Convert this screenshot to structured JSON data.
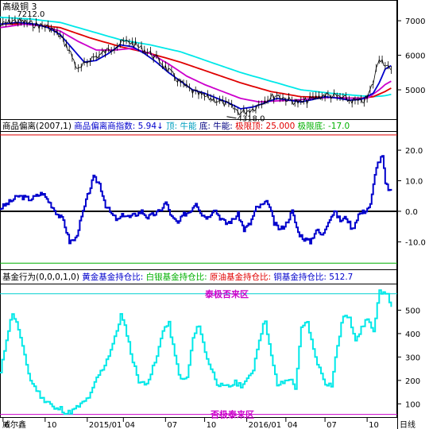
{
  "chart_data": [
    {
      "type": "line",
      "title": "高级铜 3",
      "y_ticks": [
        5000,
        6000,
        7000
      ],
      "ylim": [
        4150,
        7600
      ],
      "x_ticks": [
        {
          "label": "6",
          "week": 1
        },
        {
          "label": "10",
          "week": 15
        },
        {
          "label": "2015/01",
          "week": 29
        },
        {
          "label": "04",
          "week": 41
        },
        {
          "label": "07",
          "week": 55
        },
        {
          "label": "10",
          "week": 68
        },
        {
          "label": "2016/01",
          "week": 82
        },
        {
          "label": "04",
          "week": 95
        },
        {
          "label": "07",
          "week": 108
        },
        {
          "label": "10",
          "week": 122
        }
      ],
      "x_range_weeks": [
        0,
        132
      ],
      "annotations": {
        "high_label": "7212.0",
        "high_week": 3,
        "high_value": 7212,
        "low_label": "4318.0",
        "low_week": 78,
        "low_value": 4318
      },
      "series": [
        {
          "key": "price",
          "color": "#000000",
          "x": [
            0,
            4,
            8,
            12,
            16,
            18,
            20,
            23,
            26,
            30,
            33,
            36,
            40,
            43,
            46,
            50,
            53,
            56,
            60,
            64,
            68,
            72,
            76,
            80,
            84,
            88,
            92,
            96,
            100,
            104,
            108,
            112,
            116,
            120,
            122,
            124,
            126,
            128,
            130
          ],
          "values": [
            6850,
            7000,
            6960,
            6880,
            6820,
            6700,
            6550,
            6150,
            5550,
            5900,
            6000,
            6150,
            6350,
            6400,
            6250,
            6050,
            5850,
            5550,
            5200,
            4950,
            4800,
            4700,
            4550,
            4330,
            4450,
            4700,
            4850,
            4700,
            4620,
            4750,
            4850,
            4800,
            4700,
            4650,
            4750,
            5200,
            5950,
            5750,
            5500
          ]
        },
        {
          "key": "ma_blue",
          "color": "#0000cc",
          "x": [
            0,
            6,
            12,
            16,
            20,
            24,
            28,
            32,
            36,
            40,
            44,
            48,
            52,
            56,
            60,
            64,
            68,
            72,
            76,
            80,
            84,
            88,
            92,
            96,
            100,
            104,
            108,
            112,
            116,
            120,
            124,
            126,
            128,
            130
          ],
          "values": [
            6900,
            6950,
            6900,
            6800,
            6600,
            6200,
            5800,
            5850,
            6050,
            6300,
            6250,
            6050,
            5800,
            5500,
            5250,
            5000,
            4900,
            4760,
            4620,
            4450,
            4500,
            4620,
            4750,
            4700,
            4650,
            4720,
            4800,
            4760,
            4700,
            4720,
            4900,
            5200,
            5600,
            5700
          ]
        },
        {
          "key": "ma_magenta",
          "color": "#cc00cc",
          "x": [
            0,
            8,
            14,
            20,
            26,
            32,
            38,
            44,
            50,
            56,
            62,
            68,
            74,
            80,
            86,
            92,
            98,
            104,
            110,
            116,
            122,
            126,
            128,
            130
          ],
          "values": [
            6800,
            6900,
            6850,
            6700,
            6400,
            6150,
            6150,
            6200,
            6050,
            5750,
            5400,
            5150,
            4950,
            4750,
            4650,
            4680,
            4700,
            4750,
            4780,
            4760,
            4750,
            5000,
            5150,
            5250
          ]
        },
        {
          "key": "ma_red",
          "color": "#e00000",
          "x": [
            0,
            10,
            20,
            30,
            40,
            50,
            60,
            70,
            80,
            90,
            100,
            110,
            116,
            120,
            124,
            128,
            130
          ],
          "values": [
            6900,
            6900,
            6800,
            6500,
            6250,
            6050,
            5800,
            5500,
            5200,
            4950,
            4800,
            4780,
            4760,
            4760,
            4800,
            4950,
            5050
          ]
        },
        {
          "key": "ma_cyan",
          "color": "#00e8e8",
          "x": [
            0,
            10,
            20,
            30,
            40,
            50,
            60,
            70,
            80,
            90,
            100,
            110,
            118,
            124,
            128,
            130
          ],
          "values": [
            7100,
            7050,
            6950,
            6700,
            6450,
            6300,
            6100,
            5800,
            5500,
            5250,
            5000,
            4900,
            4840,
            4800,
            4830,
            4870
          ]
        }
      ]
    },
    {
      "type": "line",
      "title": "商品偏离(2007,1)",
      "legend": [
        {
          "text": "商品偏离商指数: 5.94↓",
          "color": "#0000cc"
        },
        {
          "text": "顶: 牛能",
          "color": "#00a0c0"
        },
        {
          "text": "底: 牛能:",
          "color": "#000080"
        },
        {
          "text": "极限顶: 25.000",
          "color": "#e00000"
        },
        {
          "text": "极限底: -17.0",
          "color": "#00b000"
        }
      ],
      "y_ticks": [
        -10.0,
        0.0,
        10.0,
        20.0
      ],
      "ylim": [
        -19,
        26
      ],
      "zero_line": 0,
      "limit_top": 25,
      "limit_bottom": -17,
      "x": [
        0,
        3,
        6,
        10,
        14,
        17,
        19,
        21,
        23,
        25,
        27,
        29,
        31,
        33,
        35,
        37,
        39,
        41,
        43,
        45,
        47,
        49,
        51,
        53,
        55,
        57,
        59,
        61,
        63,
        65,
        67,
        69,
        71,
        73,
        75,
        77,
        79,
        81,
        83,
        85,
        87,
        89,
        91,
        93,
        95,
        97,
        99,
        101,
        103,
        105,
        107,
        109,
        111,
        113,
        115,
        117,
        119,
        121,
        123,
        125,
        127,
        128,
        130
      ],
      "values": [
        1,
        3,
        5,
        4,
        6,
        2,
        -1,
        -3,
        -10,
        -9,
        -2,
        5,
        11,
        9,
        2,
        -1,
        -3,
        -1,
        -2,
        -1,
        0,
        -2,
        -1,
        0,
        3,
        -2,
        -4,
        -1,
        0,
        3,
        -1,
        -2,
        1,
        -2,
        -4,
        -3,
        -1,
        -6,
        -4,
        1,
        2,
        3,
        -4,
        -6,
        -4,
        0,
        -7,
        -9,
        -10,
        -6,
        -8,
        -3,
        0,
        -3,
        -2,
        -6,
        -1,
        0,
        2,
        15,
        18,
        9,
        6
      ]
    },
    {
      "type": "line",
      "title": "基金行为(0,0,0,1,0)",
      "legend": [
        {
          "text": "黄金基金持仓比:",
          "color": "#0000cc"
        },
        {
          "text": "白银基金持仓比:",
          "color": "#00b000"
        },
        {
          "text": "原油基金持仓比:",
          "color": "#e00000"
        },
        {
          "text": "铜基金持仓比: 512.7",
          "color": "#0000cc"
        }
      ],
      "y_ticks": [
        100,
        200,
        300,
        400,
        500
      ],
      "ylim": [
        40,
        610
      ],
      "upper_band": {
        "value": 570,
        "label": "泰极否来区"
      },
      "lower_band": {
        "value": 55,
        "label": "否极泰来区"
      },
      "x": [
        0,
        2,
        4,
        6,
        8,
        10,
        12,
        14,
        16,
        18,
        20,
        22,
        24,
        26,
        28,
        30,
        32,
        34,
        36,
        38,
        40,
        42,
        44,
        46,
        48,
        50,
        52,
        54,
        56,
        58,
        60,
        62,
        64,
        66,
        68,
        70,
        72,
        74,
        76,
        78,
        80,
        82,
        84,
        86,
        88,
        90,
        92,
        94,
        96,
        98,
        100,
        102,
        104,
        106,
        108,
        110,
        112,
        114,
        116,
        118,
        120,
        122,
        124,
        126,
        128,
        130
      ],
      "values": [
        230,
        380,
        490,
        420,
        300,
        200,
        160,
        120,
        110,
        75,
        80,
        60,
        70,
        90,
        110,
        140,
        210,
        250,
        310,
        380,
        480,
        400,
        280,
        200,
        180,
        230,
        300,
        420,
        440,
        300,
        200,
        210,
        380,
        440,
        320,
        250,
        190,
        170,
        175,
        190,
        180,
        200,
        250,
        380,
        460,
        300,
        180,
        190,
        210,
        170,
        420,
        450,
        330,
        250,
        190,
        180,
        350,
        480,
        460,
        380,
        420,
        470,
        400,
        580,
        580,
        520
      ]
    },
    {
      "type": "table",
      "axis_labels": {
        "bottom_left": "威尔鑫",
        "bottom_right": "日线"
      }
    }
  ]
}
